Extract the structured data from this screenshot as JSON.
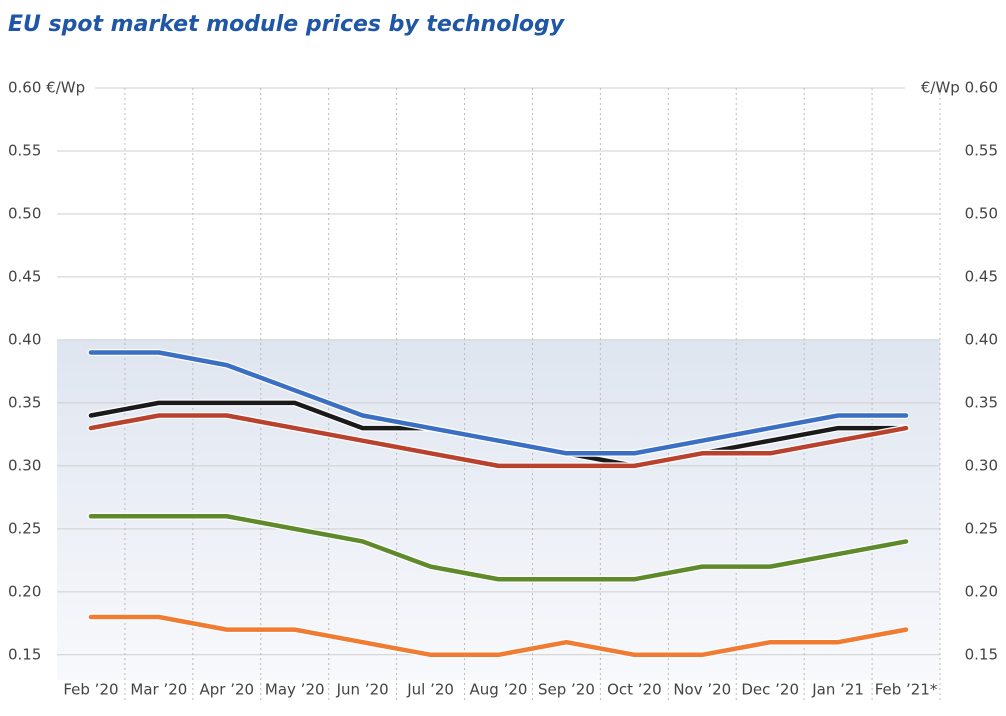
{
  "chart_data": {
    "type": "line",
    "title": "EU spot market module prices  by technology",
    "categories": [
      "Feb ’20",
      "Mar ’20",
      "Apr ’20",
      "May ’20",
      "Jun ’20",
      "Jul ’20",
      "Aug ’20",
      "Sep ’20",
      "Oct ’20",
      "Nov ’20",
      "Dec ’20",
      "Jan ’21",
      "Feb ’21*"
    ],
    "series": [
      {
        "color": "#f07c33",
        "values": [
          0.18,
          0.18,
          0.17,
          0.17,
          0.16,
          0.15,
          0.15,
          0.16,
          0.15,
          0.15,
          0.16,
          0.16,
          0.17
        ]
      },
      {
        "color": "#5f8a2c",
        "values": [
          0.26,
          0.26,
          0.26,
          0.25,
          0.24,
          0.22,
          0.21,
          0.21,
          0.21,
          0.22,
          0.22,
          0.23,
          0.24
        ]
      },
      {
        "color": "#1a1a1a",
        "values": [
          0.34,
          0.35,
          0.35,
          0.35,
          0.33,
          0.33,
          0.32,
          0.31,
          0.3,
          0.31,
          0.32,
          0.33,
          0.33
        ]
      },
      {
        "color": "#b8422e",
        "values": [
          0.33,
          0.34,
          0.34,
          0.33,
          0.32,
          0.31,
          0.3,
          0.3,
          0.3,
          0.31,
          0.31,
          0.32,
          0.33
        ]
      },
      {
        "color": "#3a6fc4",
        "values": [
          0.39,
          0.39,
          0.38,
          0.36,
          0.34,
          0.33,
          0.32,
          0.31,
          0.31,
          0.32,
          0.33,
          0.34,
          0.34
        ]
      }
    ],
    "ylim": [
      0.13,
      0.6
    ],
    "yticks": [
      {
        "value": 0.6,
        "label": "0.60 €/Wp"
      },
      {
        "value": 0.55,
        "label": "0.55"
      },
      {
        "value": 0.5,
        "label": "0.50"
      },
      {
        "value": 0.45,
        "label": "0.45"
      },
      {
        "value": 0.4,
        "label": "0.40"
      },
      {
        "value": 0.35,
        "label": "0.35"
      },
      {
        "value": 0.3,
        "label": "0.30"
      },
      {
        "value": 0.25,
        "label": "0.25"
      },
      {
        "value": 0.2,
        "label": "0.20"
      },
      {
        "value": 0.15,
        "label": "0.15"
      }
    ],
    "y2lim": [
      0.13,
      0.6
    ],
    "y2ticks": [
      {
        "value": 0.6,
        "label": "€/Wp 0.60"
      },
      {
        "value": 0.55,
        "label": "0.55"
      },
      {
        "value": 0.5,
        "label": "0.50"
      },
      {
        "value": 0.45,
        "label": "0.45"
      },
      {
        "value": 0.4,
        "label": "0.40"
      },
      {
        "value": 0.35,
        "label": "0.35"
      },
      {
        "value": 0.3,
        "label": "0.30"
      },
      {
        "value": 0.25,
        "label": "0.25"
      },
      {
        "value": 0.2,
        "label": "0.20"
      },
      {
        "value": 0.15,
        "label": "0.15"
      }
    ],
    "grid": true
  }
}
